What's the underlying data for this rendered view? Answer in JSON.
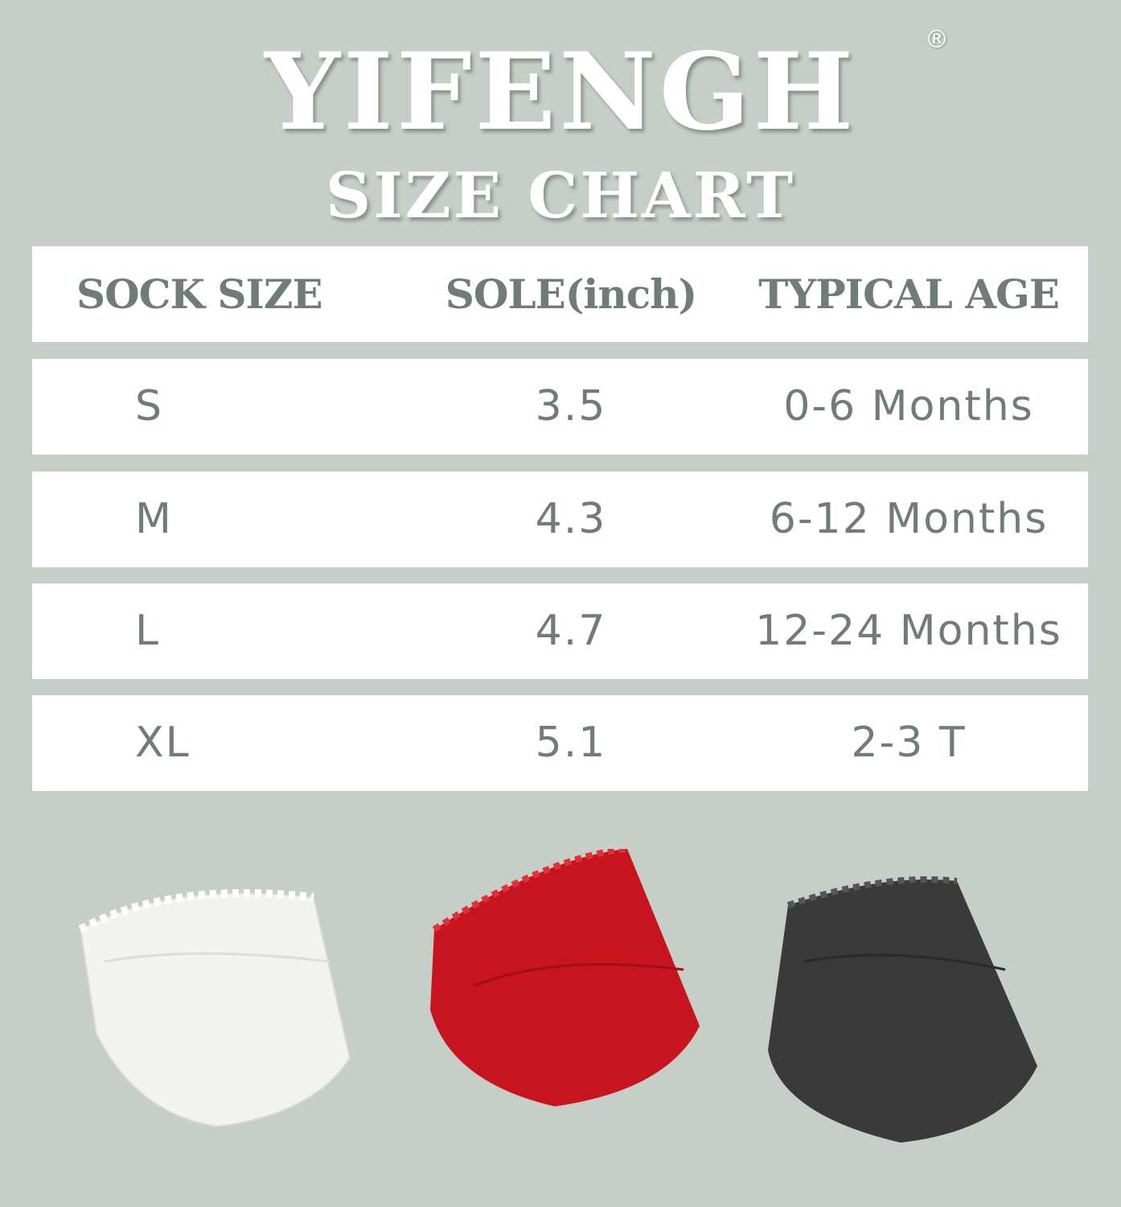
{
  "brand": {
    "name": "YIFENGH",
    "registered_mark": "®"
  },
  "title": "SIZE CHART",
  "table": {
    "headers": [
      "SOCK SIZE",
      "SOLE(inch)",
      "TYPICAL AGE"
    ],
    "rows": [
      {
        "size": "S",
        "sole": "3.5",
        "age": "0-6 Months"
      },
      {
        "size": "M",
        "sole": "4.3",
        "age": "6-12 Months"
      },
      {
        "size": "L",
        "sole": "4.7",
        "age": "12-24 Months"
      },
      {
        "size": "XL",
        "sole": "5.1",
        "age": "2-3 T"
      }
    ]
  },
  "products": [
    {
      "color_name": "white",
      "color": "#f2f2ef"
    },
    {
      "color_name": "red",
      "color": "#c8141e"
    },
    {
      "color_name": "black",
      "color": "#3a3a3a"
    }
  ],
  "colors": {
    "background": "#c5cfc7",
    "text": "#6f7d76"
  }
}
